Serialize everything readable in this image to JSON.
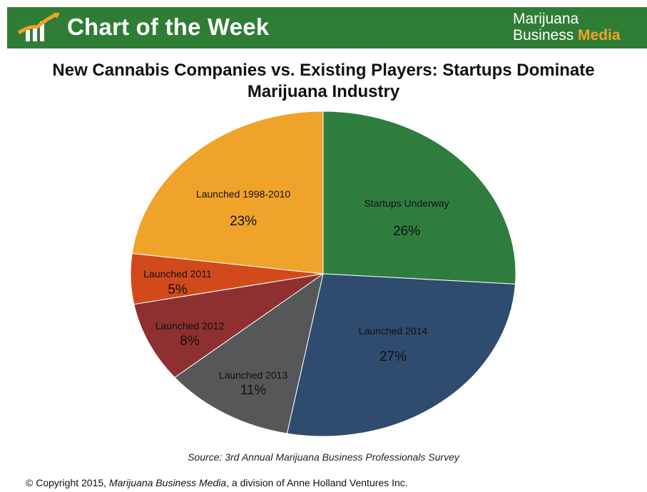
{
  "banner": {
    "title": "Chart of the Week",
    "brand_line1": "Marijuana",
    "brand_line2_a": "Business ",
    "brand_line2_b": "Media",
    "colors": {
      "bar": "#2f7d35",
      "accent": "#f0a32a"
    }
  },
  "chart_data": {
    "type": "pie",
    "title": "New Cannabis Companies vs. Existing Players: Startups Dominate Marijuana Industry",
    "slices": [
      {
        "label": "Startups Underway",
        "value": 26,
        "display": "26%",
        "color": "#2e7d3e"
      },
      {
        "label": "Launched 2014",
        "value": 27,
        "display": "27%",
        "color": "#2f4b6e"
      },
      {
        "label": "Launched 2013",
        "value": 11,
        "display": "11%",
        "color": "#555759"
      },
      {
        "label": "Launched 2012",
        "value": 8,
        "display": "8%",
        "color": "#8e3030"
      },
      {
        "label": "Launched 2011",
        "value": 5,
        "display": "5%",
        "color": "#d24a1c"
      },
      {
        "label": "Launched 1998-2010",
        "value": 23,
        "display": "23%",
        "color": "#f0a32a"
      }
    ],
    "source": "Source: 3rd Annual Marijuana Business Professionals Survey"
  },
  "footer": {
    "copyright_prefix": "© Copyright 2015, ",
    "copyright_italic": "Marijuana Business Media",
    "copyright_suffix": ", a division of Anne Holland Ventures Inc."
  }
}
